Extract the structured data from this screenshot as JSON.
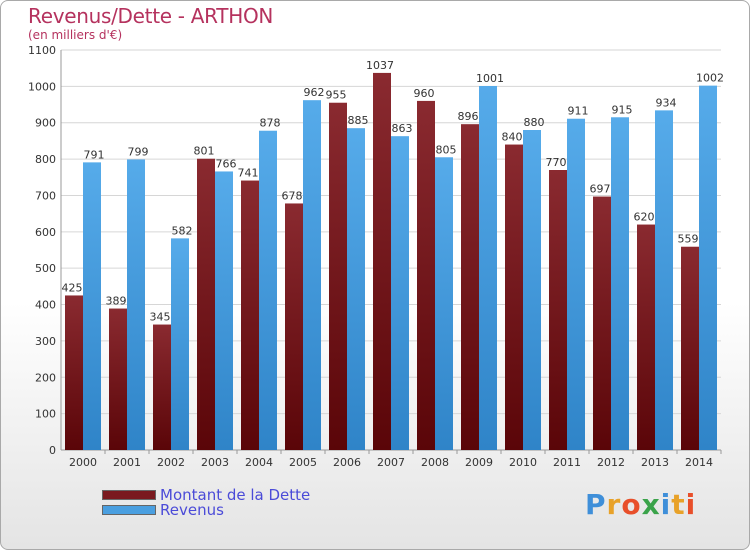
{
  "chart_data": {
    "type": "bar",
    "title": "Revenus/Dette - ARTHON",
    "subtitle": "(en milliers d'€)",
    "categories": [
      "2000",
      "2001",
      "2002",
      "2003",
      "2004",
      "2005",
      "2006",
      "2007",
      "2008",
      "2009",
      "2010",
      "2011",
      "2012",
      "2013",
      "2014"
    ],
    "series": [
      {
        "name": "Montant de la Dette",
        "color": "#7a1a1f",
        "values": [
          425,
          389,
          345,
          801,
          741,
          678,
          955,
          1037,
          960,
          896,
          840,
          770,
          697,
          620,
          559
        ]
      },
      {
        "name": "Revenus",
        "color": "#4a9fe0",
        "values": [
          791,
          799,
          582,
          766,
          878,
          962,
          885,
          863,
          805,
          1001,
          880,
          911,
          915,
          934,
          1002
        ]
      }
    ],
    "ylim": [
      0,
      1100
    ],
    "yticks": [
      0,
      100,
      200,
      300,
      400,
      500,
      600,
      700,
      800,
      900,
      1000,
      1100
    ],
    "grid": true,
    "legend_position": "bottom-left"
  },
  "brand": {
    "logo_text": "Proxiti",
    "logo_colors": [
      "#3f8fd9",
      "#e8a229",
      "#e84f2a",
      "#3aa34a",
      "#3f8fd9",
      "#e8a229",
      "#e84f2a"
    ]
  }
}
